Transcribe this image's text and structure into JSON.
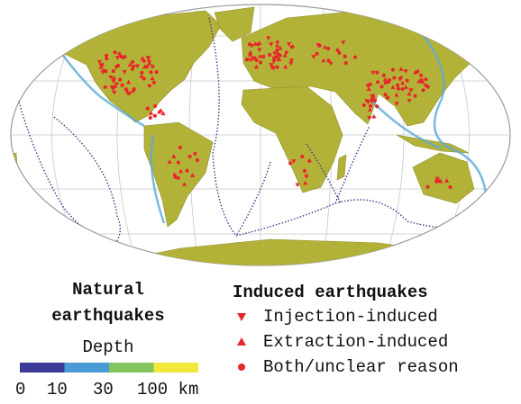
{
  "natural_legend": {
    "title_lines": [
      "Natural",
      "earthquakes"
    ],
    "depth_title": "Depth",
    "depth_scale": {
      "colors": [
        "#3b3a98",
        "#4a9ad6",
        "#84c45e",
        "#f2e83c"
      ],
      "labels": [
        "0",
        "10",
        "30",
        "100 km"
      ]
    }
  },
  "induced_legend": {
    "title": "Induced earthquakes",
    "color": "#e8262b",
    "items": [
      {
        "label": "Injection-induced",
        "marker": "triangle-down"
      },
      {
        "label": "Extraction-induced",
        "marker": "triangle-up"
      },
      {
        "label": "Both/unclear reason",
        "marker": "circle"
      }
    ]
  }
}
